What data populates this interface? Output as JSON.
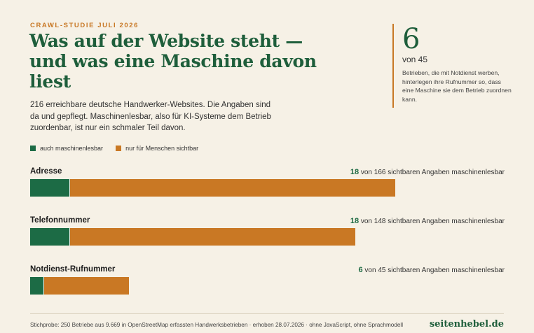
{
  "header": {
    "eyebrow": "CRAWL-STUDIE JULI 2026",
    "title": "Was auf der Website steht — und was eine Maschine davon liest",
    "intro": "216 erreichbare deutsche Handwerker-Websites. Die Angaben sind da und gepflegt. Maschinenlesbar, also für KI-Systeme dem Betrieb zuordenbar, ist nur ein schmaler Teil davon."
  },
  "stat": {
    "value": "6",
    "of": "von 45",
    "description": "Betrieben, die mit Notdienst werben, hinterlegen ihre Rufnummer so, dass eine Maschine sie dem Betrieb zuordnen kann."
  },
  "legend": {
    "machine": "auch maschinenlesbar",
    "human": "nur für Menschen sichtbar"
  },
  "colors": {
    "machine": "#1c6b45",
    "human": "#c97824",
    "accent": "#c87825",
    "title": "#1e5e3b",
    "background": "#f6f1e6"
  },
  "chart_data": {
    "type": "bar",
    "orientation": "horizontal",
    "stacked": true,
    "categories": [
      "Adresse",
      "Telefonnummer",
      "Notdienst-Rufnummer"
    ],
    "series": [
      {
        "name": "auch maschinenlesbar",
        "values": [
          18,
          18,
          6
        ]
      },
      {
        "name": "nur für Menschen sichtbar",
        "values": [
          148,
          130,
          39
        ]
      }
    ],
    "totals": [
      166,
      148,
      45
    ],
    "notes": [
      {
        "num": "18",
        "text": "von 166 sichtbaren Angaben maschinenlesbar"
      },
      {
        "num": "18",
        "text": "von 148 sichtbaren Angaben maschinenlesbar"
      },
      {
        "num": "6",
        "text": "von 45 sichtbaren Angaben maschinenlesbar"
      }
    ],
    "legend_position": "top-left",
    "grid": false
  },
  "footer": {
    "source": "Stichprobe: 250 Betriebe aus 9.669 in OpenStreetMap erfassten Handwerksbetrieben · erhoben 28.07.2026 · ohne JavaScript, ohne Sprachmodell",
    "brand": "seitenhebel.de"
  }
}
